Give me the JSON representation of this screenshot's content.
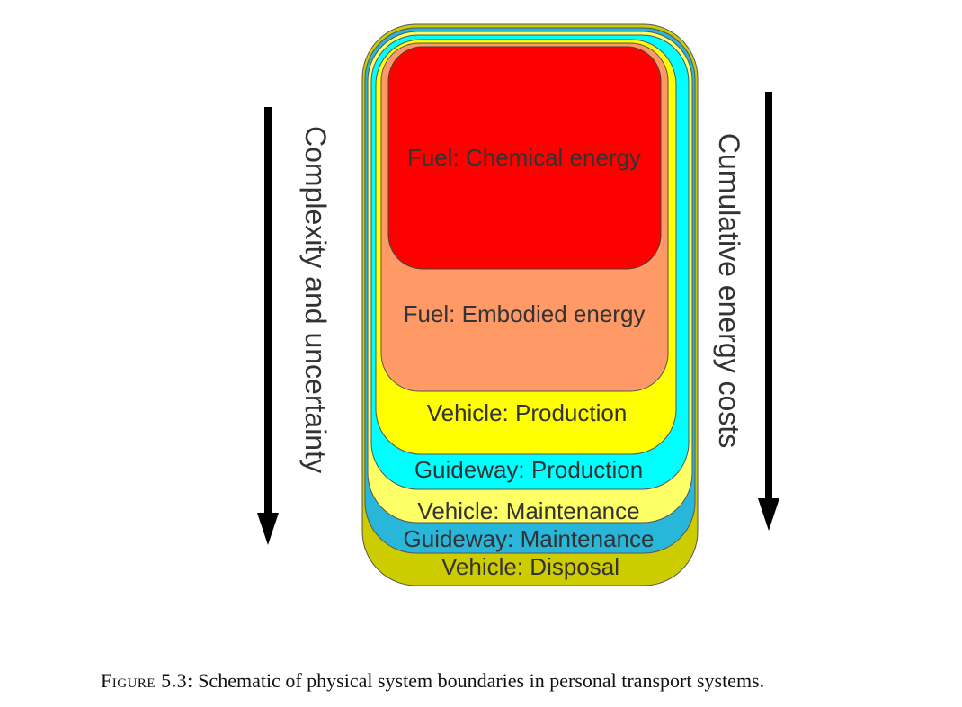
{
  "diagram": {
    "layers": [
      {
        "id": "vehicle-disposal",
        "label": "Vehicle: Disposal",
        "color": "#cccc00"
      },
      {
        "id": "guideway-maintenance",
        "label": "Guideway: Maintenance",
        "color": "#29b6db"
      },
      {
        "id": "vehicle-maintenance",
        "label": "Vehicle: Maintenance",
        "color": "#ffff66"
      },
      {
        "id": "guideway-production",
        "label": "Guideway: Production",
        "color": "#00ffff"
      },
      {
        "id": "vehicle-production",
        "label": "Vehicle: Production",
        "color": "#ffff00"
      },
      {
        "id": "fuel-embodied",
        "label": "Fuel: Embodied energy",
        "color": "#ff9966"
      },
      {
        "id": "fuel-chemical",
        "label": "Fuel: Chemical energy",
        "color": "#ff0000"
      }
    ],
    "left_arrow_label": "Complexity and uncertainty",
    "right_arrow_label": "Cumulative energy costs"
  },
  "caption": {
    "figure": "Figure 5.3:",
    "text": "Schematic of physical system boundaries in personal transport systems."
  }
}
